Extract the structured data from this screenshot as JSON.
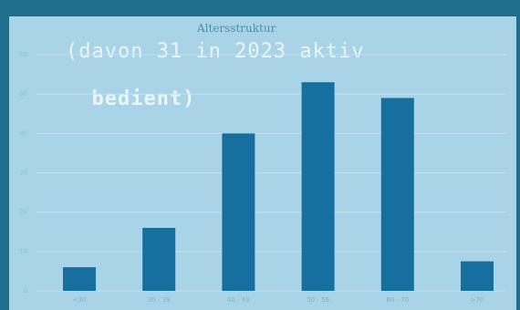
{
  "header": {
    "line1": "(davon 31 in 2023 aktiv",
    "line2": "bedient)"
  },
  "chart_data": {
    "type": "bar",
    "title": "Altersstruktur",
    "categories": [
      "<30",
      "30 - 39",
      "40 - 49",
      "50 - 59",
      "60 - 70",
      ">70"
    ],
    "values": [
      6,
      16,
      40,
      53,
      49,
      7.5
    ],
    "ylim": [
      0,
      60
    ],
    "yticks": [
      0,
      10,
      20,
      30,
      40,
      50,
      60
    ],
    "grid": true,
    "bar_color": "#166f9f",
    "grid_color": "#c4e1ee",
    "background": "#a9d3e6"
  }
}
